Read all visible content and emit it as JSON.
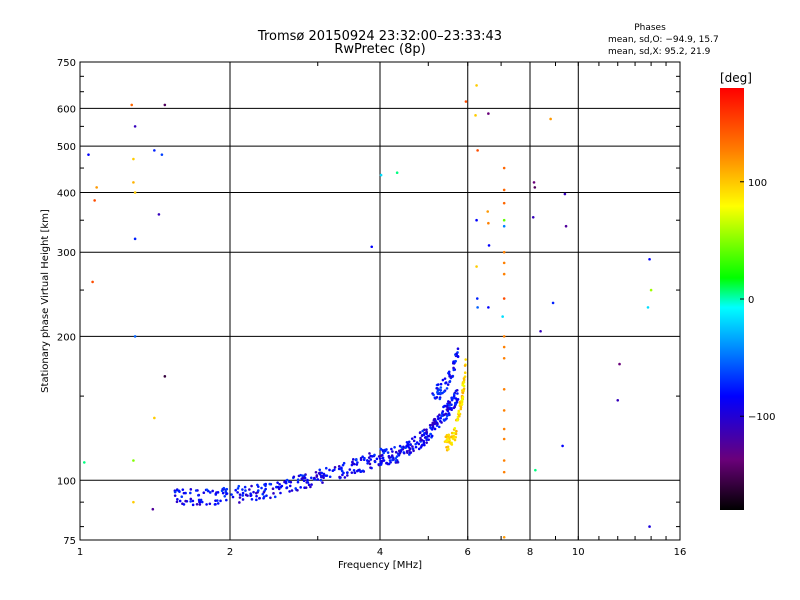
{
  "chart_data": {
    "type": "scatter",
    "title": "Tromsø 20150924 23:32:00–23:33:43",
    "subtitle": "RwPretec (8p)",
    "xlabel": "Frequency [MHz]",
    "ylabel": "Stationary phase Virtual Height [km]",
    "x_scale": "log",
    "y_scale": "log",
    "xlim": [
      1,
      16
    ],
    "ylim": [
      75,
      750
    ],
    "grid": true,
    "x_ticks": [
      "1",
      "2",
      "4",
      "6",
      "8",
      "10",
      "16"
    ],
    "y_ticks": [
      "75",
      "100",
      "200",
      "300",
      "400",
      "500",
      "600",
      "750"
    ],
    "phase_info": {
      "heading": "Phases",
      "line_o": "mean, sd,O: −94.9, 15.7",
      "line_x": "mean, sd,X:  95.2, 21.9"
    },
    "colorbar": {
      "label": "[deg]",
      "range": [
        -180,
        180
      ],
      "ticks": [
        "100",
        "0",
        "−100"
      ],
      "colors": [
        "#000000",
        "#6a007a",
        "#0000ff",
        "#00ffff",
        "#00ff00",
        "#ffff00",
        "#ff8000",
        "#ff0000"
      ]
    },
    "traces": [
      {
        "name": "",
        "x_range": [
          1.55,
          4.0
        ],
        "y_range": [
          92,
          112
        ],
        "phase": -100
      },
      {
        "name": "",
        "x_range": [
          4.0,
          5.75
        ],
        "y_range": [
          112,
          152
        ],
        "phase": -100
      },
      {
        "name": "",
        "x_range": [
          5.1,
          5.75
        ],
        "y_range": [
          152,
          185
        ],
        "phase": -95
      },
      {
        "name": "",
        "x_range": [
          5.4,
          5.95
        ],
        "y_range": [
          120,
          175
        ],
        "phase": 95
      }
    ],
    "points": [
      {
        "x": 1.04,
        "y": 480,
        "phase": -100
      },
      {
        "x": 1.08,
        "y": 410,
        "phase": 120
      },
      {
        "x": 1.07,
        "y": 385,
        "phase": 150
      },
      {
        "x": 1.06,
        "y": 260,
        "phase": 150
      },
      {
        "x": 1.27,
        "y": 610,
        "phase": 140
      },
      {
        "x": 1.28,
        "y": 470,
        "phase": 100
      },
      {
        "x": 1.28,
        "y": 420,
        "phase": 110
      },
      {
        "x": 1.29,
        "y": 400,
        "phase": 100
      },
      {
        "x": 1.29,
        "y": 550,
        "phase": -120
      },
      {
        "x": 1.29,
        "y": 320,
        "phase": -90
      },
      {
        "x": 1.29,
        "y": 200,
        "phase": -70
      },
      {
        "x": 1.28,
        "y": 110,
        "phase": 40
      },
      {
        "x": 1.28,
        "y": 90,
        "phase": 100
      },
      {
        "x": 1.41,
        "y": 490,
        "phase": -90
      },
      {
        "x": 1.46,
        "y": 480,
        "phase": -80
      },
      {
        "x": 1.44,
        "y": 360,
        "phase": -120
      },
      {
        "x": 1.48,
        "y": 610,
        "phase": -150
      },
      {
        "x": 1.48,
        "y": 165,
        "phase": -160
      },
      {
        "x": 1.41,
        "y": 135,
        "phase": 100
      },
      {
        "x": 1.4,
        "y": 87,
        "phase": -130
      },
      {
        "x": 1.02,
        "y": 109,
        "phase": -10
      },
      {
        "x": 3.85,
        "y": 308,
        "phase": -100
      },
      {
        "x": 4.02,
        "y": 435,
        "phase": -30
      },
      {
        "x": 4.33,
        "y": 440,
        "phase": -10
      },
      {
        "x": 5.95,
        "y": 620,
        "phase": 150
      },
      {
        "x": 6.25,
        "y": 670,
        "phase": 100
      },
      {
        "x": 6.22,
        "y": 580,
        "phase": 100
      },
      {
        "x": 6.28,
        "y": 490,
        "phase": 150
      },
      {
        "x": 6.6,
        "y": 585,
        "phase": -140
      },
      {
        "x": 6.25,
        "y": 350,
        "phase": -100
      },
      {
        "x": 6.58,
        "y": 365,
        "phase": 120
      },
      {
        "x": 6.6,
        "y": 345,
        "phase": 130
      },
      {
        "x": 6.62,
        "y": 310,
        "phase": -100
      },
      {
        "x": 6.25,
        "y": 280,
        "phase": 100
      },
      {
        "x": 6.27,
        "y": 240,
        "phase": -90
      },
      {
        "x": 6.28,
        "y": 230,
        "phase": -70
      },
      {
        "x": 6.6,
        "y": 230,
        "phase": -100
      },
      {
        "x": 7.1,
        "y": 450,
        "phase": 140
      },
      {
        "x": 7.1,
        "y": 405,
        "phase": 140
      },
      {
        "x": 7.1,
        "y": 380,
        "phase": 140
      },
      {
        "x": 7.1,
        "y": 350,
        "phase": 30
      },
      {
        "x": 7.1,
        "y": 340,
        "phase": -60
      },
      {
        "x": 7.1,
        "y": 300,
        "phase": 130
      },
      {
        "x": 7.1,
        "y": 285,
        "phase": 130
      },
      {
        "x": 7.1,
        "y": 270,
        "phase": 130
      },
      {
        "x": 7.1,
        "y": 240,
        "phase": 150
      },
      {
        "x": 7.05,
        "y": 220,
        "phase": -30
      },
      {
        "x": 7.1,
        "y": 200,
        "phase": 130
      },
      {
        "x": 7.1,
        "y": 190,
        "phase": 130
      },
      {
        "x": 7.1,
        "y": 180,
        "phase": 130
      },
      {
        "x": 7.1,
        "y": 155,
        "phase": 130
      },
      {
        "x": 7.1,
        "y": 140,
        "phase": 130
      },
      {
        "x": 7.1,
        "y": 128,
        "phase": 130
      },
      {
        "x": 7.1,
        "y": 122,
        "phase": 130
      },
      {
        "x": 7.1,
        "y": 110,
        "phase": 130
      },
      {
        "x": 7.1,
        "y": 104,
        "phase": 130
      },
      {
        "x": 7.1,
        "y": 76,
        "phase": 120
      },
      {
        "x": 8.15,
        "y": 420,
        "phase": -140
      },
      {
        "x": 8.18,
        "y": 410,
        "phase": -150
      },
      {
        "x": 8.12,
        "y": 355,
        "phase": -120
      },
      {
        "x": 8.4,
        "y": 205,
        "phase": -120
      },
      {
        "x": 8.2,
        "y": 105,
        "phase": -10
      },
      {
        "x": 8.8,
        "y": 570,
        "phase": 120
      },
      {
        "x": 8.9,
        "y": 235,
        "phase": -90
      },
      {
        "x": 9.4,
        "y": 397,
        "phase": -120
      },
      {
        "x": 9.45,
        "y": 340,
        "phase": -130
      },
      {
        "x": 9.3,
        "y": 118,
        "phase": -100
      },
      {
        "x": 12.1,
        "y": 175,
        "phase": -140
      },
      {
        "x": 12.0,
        "y": 147,
        "phase": -120
      },
      {
        "x": 13.9,
        "y": 290,
        "phase": -100
      },
      {
        "x": 14.0,
        "y": 250,
        "phase": 50
      },
      {
        "x": 13.8,
        "y": 230,
        "phase": -30
      },
      {
        "x": 13.9,
        "y": 80,
        "phase": -110
      }
    ]
  }
}
